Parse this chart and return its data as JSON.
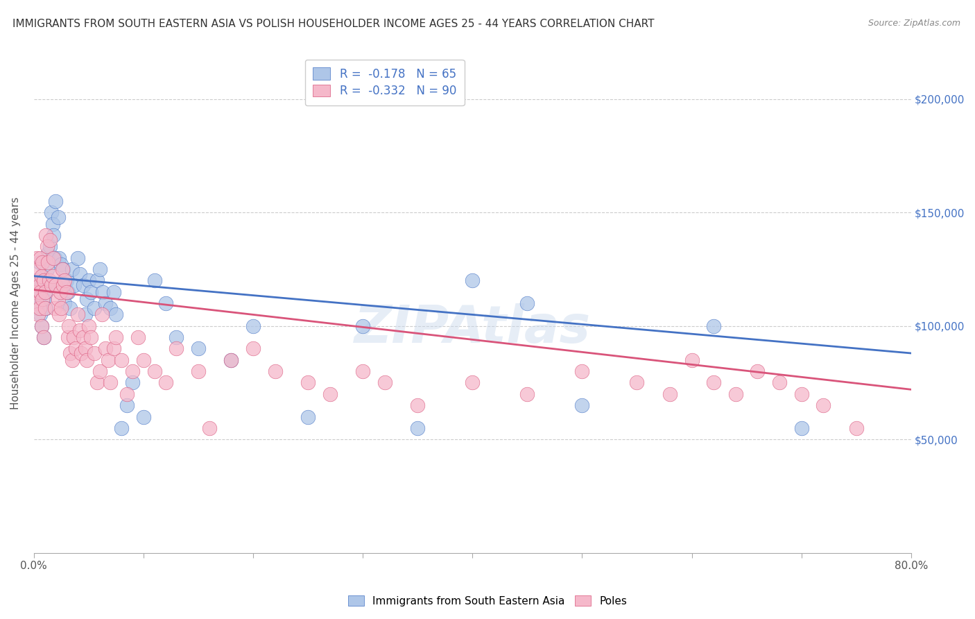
{
  "title": "IMMIGRANTS FROM SOUTH EASTERN ASIA VS POLISH HOUSEHOLDER INCOME AGES 25 - 44 YEARS CORRELATION CHART",
  "source": "Source: ZipAtlas.com",
  "ylabel": "Householder Income Ages 25 - 44 years",
  "ytick_labels": [
    "$50,000",
    "$100,000",
    "$150,000",
    "$200,000"
  ],
  "ytick_values": [
    50000,
    100000,
    150000,
    200000
  ],
  "xlim": [
    0.0,
    0.8
  ],
  "ylim": [
    0,
    220000
  ],
  "blue_R": -0.178,
  "blue_N": 65,
  "pink_R": -0.332,
  "pink_N": 90,
  "legend_label_blue": "Immigrants from South Eastern Asia",
  "legend_label_pink": "Poles",
  "blue_color": "#aec6e8",
  "blue_line_color": "#4472c4",
  "pink_color": "#f5b8ca",
  "pink_line_color": "#d9547a",
  "watermark": "ZIPAtlas",
  "title_fontsize": 11,
  "source_fontsize": 9,
  "blue_line_y0": 122000,
  "blue_line_y1": 88000,
  "pink_line_y0": 116000,
  "pink_line_y1": 72000,
  "blue_x": [
    0.002,
    0.003,
    0.004,
    0.005,
    0.005,
    0.006,
    0.007,
    0.007,
    0.008,
    0.009,
    0.009,
    0.01,
    0.011,
    0.012,
    0.013,
    0.014,
    0.015,
    0.016,
    0.017,
    0.018,
    0.019,
    0.02,
    0.022,
    0.023,
    0.025,
    0.027,
    0.028,
    0.03,
    0.031,
    0.033,
    0.035,
    0.037,
    0.04,
    0.042,
    0.045,
    0.047,
    0.048,
    0.05,
    0.052,
    0.055,
    0.058,
    0.06,
    0.063,
    0.065,
    0.07,
    0.073,
    0.075,
    0.08,
    0.085,
    0.09,
    0.1,
    0.11,
    0.12,
    0.13,
    0.15,
    0.18,
    0.2,
    0.25,
    0.3,
    0.35,
    0.4,
    0.45,
    0.5,
    0.62,
    0.7
  ],
  "blue_y": [
    120000,
    108000,
    115000,
    110000,
    128000,
    105000,
    118000,
    100000,
    122000,
    112000,
    95000,
    115000,
    108000,
    125000,
    132000,
    119000,
    135000,
    150000,
    145000,
    140000,
    130000,
    155000,
    148000,
    130000,
    127000,
    125000,
    110000,
    120000,
    115000,
    108000,
    125000,
    118000,
    130000,
    123000,
    118000,
    105000,
    112000,
    120000,
    115000,
    108000,
    120000,
    125000,
    115000,
    110000,
    108000,
    115000,
    105000,
    55000,
    65000,
    75000,
    60000,
    120000,
    110000,
    95000,
    90000,
    85000,
    100000,
    60000,
    100000,
    55000,
    120000,
    110000,
    65000,
    100000,
    55000
  ],
  "pink_x": [
    0.001,
    0.002,
    0.003,
    0.003,
    0.004,
    0.004,
    0.005,
    0.005,
    0.006,
    0.006,
    0.007,
    0.007,
    0.008,
    0.008,
    0.009,
    0.009,
    0.01,
    0.01,
    0.011,
    0.012,
    0.013,
    0.014,
    0.015,
    0.016,
    0.017,
    0.018,
    0.019,
    0.02,
    0.022,
    0.023,
    0.024,
    0.025,
    0.026,
    0.027,
    0.028,
    0.03,
    0.031,
    0.032,
    0.033,
    0.035,
    0.036,
    0.038,
    0.04,
    0.042,
    0.043,
    0.045,
    0.047,
    0.048,
    0.05,
    0.052,
    0.055,
    0.058,
    0.06,
    0.062,
    0.065,
    0.068,
    0.07,
    0.073,
    0.075,
    0.08,
    0.085,
    0.09,
    0.095,
    0.1,
    0.11,
    0.12,
    0.13,
    0.15,
    0.16,
    0.18,
    0.2,
    0.22,
    0.25,
    0.27,
    0.3,
    0.32,
    0.35,
    0.4,
    0.45,
    0.5,
    0.55,
    0.58,
    0.6,
    0.62,
    0.64,
    0.66,
    0.68,
    0.7,
    0.72,
    0.75
  ],
  "pink_y": [
    120000,
    115000,
    130000,
    110000,
    125000,
    105000,
    118000,
    108000,
    130000,
    115000,
    122000,
    100000,
    128000,
    112000,
    120000,
    95000,
    115000,
    108000,
    140000,
    135000,
    128000,
    120000,
    138000,
    118000,
    122000,
    130000,
    108000,
    118000,
    112000,
    105000,
    115000,
    108000,
    125000,
    118000,
    120000,
    115000,
    95000,
    100000,
    88000,
    85000,
    95000,
    90000,
    105000,
    98000,
    88000,
    95000,
    90000,
    85000,
    100000,
    95000,
    88000,
    75000,
    80000,
    105000,
    90000,
    85000,
    75000,
    90000,
    95000,
    85000,
    70000,
    80000,
    95000,
    85000,
    80000,
    75000,
    90000,
    80000,
    55000,
    85000,
    90000,
    80000,
    75000,
    70000,
    80000,
    75000,
    65000,
    75000,
    70000,
    80000,
    75000,
    70000,
    85000,
    75000,
    70000,
    80000,
    75000,
    70000,
    65000,
    55000
  ]
}
